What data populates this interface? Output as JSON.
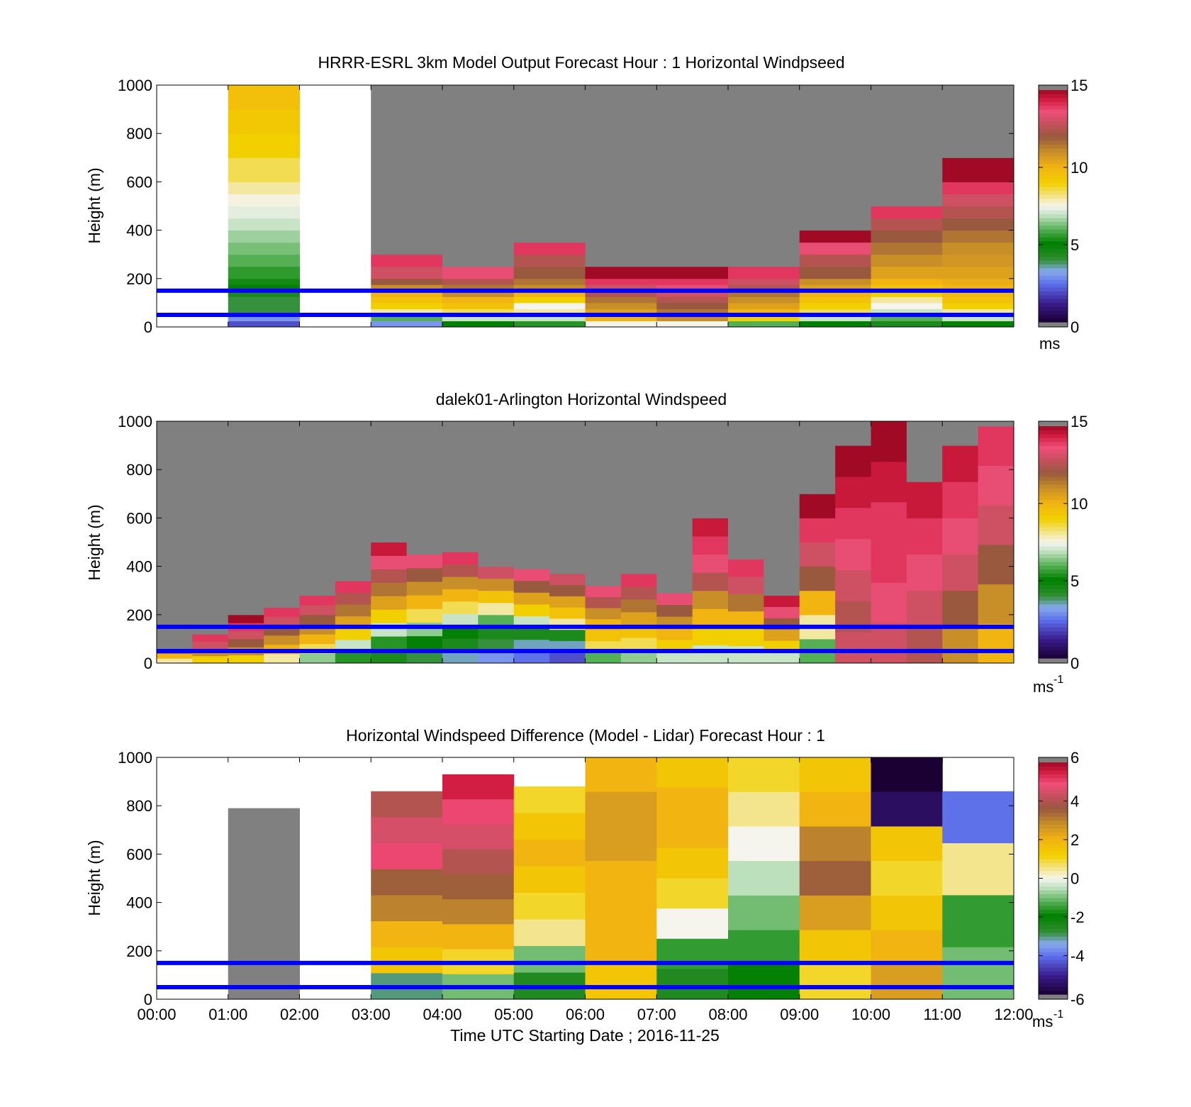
{
  "figure": {
    "xlabel": "Time UTC  Starting Date ; 2016-11-25"
  },
  "chart_data": [
    {
      "type": "heatmap",
      "title": "HRRR-ESRL 3km Model Output   Forecast Hour : 1 Horizontal Windpseed",
      "ylabel": "Height (m)",
      "ylim": [
        0,
        1000
      ],
      "yticks": [
        "0",
        "200",
        "400",
        "600",
        "800",
        "1000"
      ],
      "xlim_hours": [
        0,
        12
      ],
      "xticks": [
        "00:00",
        "01:00",
        "02:00",
        "03:00",
        "04:00",
        "05:00",
        "06:00",
        "07:00",
        "08:00",
        "09:00",
        "10:00",
        "11:00",
        "12:00"
      ],
      "colorbar": {
        "vmin": 0,
        "vmax": 15,
        "ticks": [
          "0",
          "5",
          "10",
          "15"
        ],
        "unit": "ms"
      },
      "missing_color": "#808080",
      "layers": [
        0,
        25,
        50,
        75,
        100,
        125,
        150,
        175,
        200,
        250,
        300,
        350,
        400,
        450,
        500,
        550,
        600,
        700,
        800,
        900,
        1000
      ],
      "columns": [
        {
          "hour": 1,
          "values": [
            2,
            3,
            4,
            4,
            4,
            4.5,
            5,
            5.3,
            5.6,
            6,
            6.3,
            6.6,
            7,
            7.3,
            7.6,
            8,
            8.5,
            9,
            9.3,
            9.6
          ]
        },
        {
          "hour": 3,
          "values": [
            3,
            6,
            8,
            9,
            9.5,
            10,
            11,
            12,
            13,
            14,
            null,
            null,
            null,
            null,
            null,
            null,
            null,
            null,
            null,
            null
          ]
        },
        {
          "hour": 4,
          "values": [
            5,
            7,
            8.5,
            9.5,
            10,
            11,
            11.5,
            12.5,
            13.5,
            null,
            null,
            null,
            null,
            null,
            null,
            null,
            null,
            null,
            null,
            null
          ]
        },
        {
          "hour": 5,
          "values": [
            5.5,
            7,
            8,
            7.5,
            9,
            10,
            11,
            11.5,
            12,
            12.5,
            14,
            null,
            null,
            null,
            null,
            null,
            null,
            null,
            null,
            null
          ]
        },
        {
          "hour": 6,
          "values": [
            7.5,
            10,
            10.5,
            11,
            11.5,
            12.5,
            13,
            14,
            15,
            null,
            null,
            null,
            null,
            null,
            null,
            null,
            null,
            null,
            null,
            null
          ]
        },
        {
          "hour": 7,
          "values": [
            7.5,
            11,
            11.5,
            12,
            12.5,
            13,
            13.5,
            14,
            15,
            null,
            null,
            null,
            null,
            null,
            null,
            null,
            null,
            null,
            null,
            null
          ]
        },
        {
          "hour": 8,
          "values": [
            6,
            9,
            10,
            10.5,
            11,
            11.5,
            12.5,
            13,
            14,
            null,
            null,
            null,
            null,
            null,
            null,
            null,
            null,
            null,
            null,
            null
          ]
        },
        {
          "hour": 9,
          "values": [
            5,
            7,
            8.5,
            9,
            9.5,
            10,
            10.5,
            11,
            12,
            12.5,
            13.5,
            15,
            null,
            null,
            null,
            null,
            null,
            null,
            null,
            null
          ]
        },
        {
          "hour": 10,
          "values": [
            4.5,
            6,
            7,
            7.5,
            8,
            9,
            9.5,
            10,
            10.5,
            11,
            11.5,
            12,
            12.5,
            14,
            null,
            null,
            null,
            null,
            null,
            null
          ]
        },
        {
          "hour": 11,
          "values": [
            5,
            7,
            8,
            9,
            9.5,
            9.8,
            10,
            10.2,
            10.5,
            10.8,
            11,
            11.5,
            12,
            12.5,
            13,
            14,
            15,
            null,
            null,
            null
          ]
        }
      ]
    },
    {
      "type": "heatmap",
      "title": "dalek01-Arlington  Horizontal Windspeed",
      "ylabel": "Height (m)",
      "ylim": [
        0,
        1000
      ],
      "yticks": [
        "0",
        "200",
        "400",
        "600",
        "800",
        "1000"
      ],
      "xlim_hours": [
        0,
        12
      ],
      "colorbar": {
        "vmin": 0,
        "vmax": 15,
        "ticks": [
          "0",
          "5",
          "10",
          "15"
        ],
        "unit": "ms",
        "unit_exp": "-1"
      },
      "missing_color": "#808080",
      "profiles": [
        {
          "hour": 0.25,
          "top": 60,
          "values": [
            8,
            10,
            12
          ]
        },
        {
          "hour": 0.75,
          "top": 120,
          "values": [
            9,
            11,
            13,
            14
          ]
        },
        {
          "hour": 1.25,
          "top": 200,
          "values": [
            9,
            11,
            12,
            13,
            14,
            15
          ]
        },
        {
          "hour": 1.75,
          "top": 230,
          "values": [
            8,
            10,
            11,
            12,
            13,
            14
          ]
        },
        {
          "hour": 2.25,
          "top": 280,
          "values": [
            6.5,
            8.5,
            10,
            11,
            12,
            13,
            14
          ]
        },
        {
          "hour": 2.75,
          "top": 340,
          "values": [
            5.5,
            7,
            9,
            10.5,
            11.5,
            12.5,
            14
          ]
        },
        {
          "hour": 3.25,
          "top": 500,
          "values": [
            4.5,
            5.5,
            7,
            9,
            10.5,
            11.5,
            12.5,
            13.5,
            14.5
          ]
        },
        {
          "hour": 3.75,
          "top": 450,
          "values": [
            4,
            5,
            6.5,
            8.5,
            10,
            11,
            12,
            13.5
          ]
        },
        {
          "hour": 4.25,
          "top": 460,
          "values": [
            3.5,
            4.5,
            5,
            7,
            8.5,
            10,
            11,
            12.5,
            14
          ]
        },
        {
          "hour": 4.75,
          "top": 400,
          "values": [
            3,
            4,
            4.5,
            6,
            8,
            9.5,
            11,
            13
          ]
        },
        {
          "hour": 5.25,
          "top": 390,
          "values": [
            2.5,
            3.5,
            4.5,
            7,
            9,
            10.5,
            12,
            13.5
          ]
        },
        {
          "hour": 5.75,
          "top": 370,
          "values": [
            2,
            3.5,
            4.5,
            8,
            9.5,
            10.5,
            12,
            13
          ]
        },
        {
          "hour": 6.25,
          "top": 320,
          "values": [
            6,
            8.5,
            9.5,
            10,
            11,
            12.5,
            13.5
          ]
        },
        {
          "hour": 6.75,
          "top": 370,
          "values": [
            6.5,
            8.5,
            9.5,
            10.5,
            11.5,
            12.5,
            14
          ]
        },
        {
          "hour": 7.25,
          "top": 290,
          "values": [
            7,
            9,
            10,
            11,
            12,
            13.5
          ]
        },
        {
          "hour": 7.75,
          "top": 600,
          "values": [
            7,
            9,
            10,
            11,
            12.5,
            13.5,
            14,
            14.5
          ]
        },
        {
          "hour": 8.25,
          "top": 430,
          "values": [
            7,
            9,
            10,
            11.5,
            13,
            14
          ]
        },
        {
          "hour": 8.75,
          "top": 280,
          "values": [
            7,
            9,
            10.5,
            12,
            13.5,
            14.5
          ]
        },
        {
          "hour": 9.25,
          "top": 700,
          "values": [
            6,
            8,
            10,
            12,
            13,
            14,
            15
          ]
        },
        {
          "hour": 9.75,
          "top": 900,
          "values": [
            13,
            12.5,
            13,
            13.5,
            14,
            14.5,
            15
          ]
        },
        {
          "hour": 10.25,
          "top": 1000,
          "values": [
            13,
            13.5,
            14,
            14,
            14.5,
            15
          ]
        },
        {
          "hour": 10.75,
          "top": 750,
          "values": [
            12.5,
            13,
            13.5,
            14,
            14.5
          ]
        },
        {
          "hour": 11.25,
          "top": 900,
          "values": [
            11,
            12,
            13,
            13.5,
            14,
            14.5
          ]
        },
        {
          "hour": 11.75,
          "top": 980,
          "values": [
            10,
            11,
            12,
            13,
            13.5,
            14
          ]
        }
      ]
    },
    {
      "type": "heatmap",
      "title": "Horizontal Windspeed Difference (Model - Lidar) Forecast Hour : 1",
      "ylabel": "Height (m)",
      "ylim": [
        0,
        1000
      ],
      "yticks": [
        "0",
        "200",
        "400",
        "600",
        "800",
        "1000"
      ],
      "xlim_hours": [
        0,
        12
      ],
      "colorbar": {
        "vmin": -6,
        "vmax": 6,
        "ticks": [
          "-6",
          "-4",
          "-2",
          "0",
          "2",
          "4",
          "6"
        ],
        "unit": "ms",
        "unit_exp": "-1"
      },
      "missing_color": "#808080",
      "columns": [
        {
          "hour": 1,
          "top": 790,
          "values": [
            -6.5
          ]
        },
        {
          "hour": 3,
          "top": 860,
          "values": [
            4,
            4.5,
            5,
            3.5,
            3,
            2,
            1.5,
            -3
          ]
        },
        {
          "hour": 4,
          "top": 930,
          "values": [
            5.5,
            5,
            4.5,
            4,
            3.5,
            3,
            2,
            1,
            -1
          ]
        },
        {
          "hour": 5,
          "top": 880,
          "values": [
            1,
            1.5,
            2,
            1.5,
            1,
            0.5,
            -1,
            -2.5
          ]
        },
        {
          "hour": 6,
          "top": 1000,
          "values": [
            2,
            2.5,
            2.5,
            2,
            2,
            2,
            1.5
          ]
        },
        {
          "hour": 7,
          "top": 1000,
          "values": [
            1.5,
            2,
            2,
            1.5,
            1,
            0,
            -1.5,
            -2.5
          ]
        },
        {
          "hour": 8,
          "top": 1000,
          "values": [
            1,
            0.5,
            0,
            -0.5,
            -1,
            -1.5,
            -2
          ]
        },
        {
          "hour": 9,
          "top": 1000,
          "values": [
            1.5,
            2,
            3,
            3.5,
            2.5,
            1.5,
            1
          ]
        },
        {
          "hour": 10,
          "top": 1000,
          "values": [
            -6,
            -5.5,
            1.5,
            1,
            1.5,
            2,
            2.5
          ]
        },
        {
          "hour": 11,
          "top": 860,
          "values": [
            -4,
            0.5,
            -1.5,
            -1
          ]
        }
      ]
    }
  ],
  "reference_lines": {
    "heights": [
      50,
      150
    ],
    "color": "#0000ff"
  },
  "annotations": {
    "top_unit": "ms",
    "mid_unit": "ms",
    "mid_unit_exp": "-1",
    "bot_unit": "ms",
    "bot_unit_exp": "-1"
  }
}
